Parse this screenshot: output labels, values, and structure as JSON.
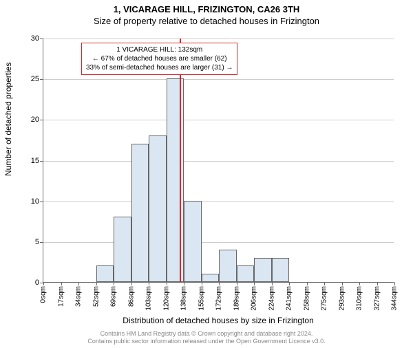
{
  "title_main": "1, VICARAGE HILL, FRIZINGTON, CA26 3TH",
  "title_sub": "Size of property relative to detached houses in Frizington",
  "chart": {
    "type": "histogram",
    "ylabel": "Number of detached properties",
    "xlabel": "Distribution of detached houses by size in Frizington",
    "ylim": [
      0,
      30
    ],
    "yticks": [
      0,
      5,
      10,
      15,
      20,
      25,
      30
    ],
    "xtick_labels": [
      "0sqm",
      "17sqm",
      "34sqm",
      "52sqm",
      "69sqm",
      "86sqm",
      "103sqm",
      "120sqm",
      "138sqm",
      "155sqm",
      "172sqm",
      "189sqm",
      "206sqm",
      "224sqm",
      "241sqm",
      "258sqm",
      "275sqm",
      "293sqm",
      "310sqm",
      "327sqm",
      "344sqm"
    ],
    "bin_count": 20,
    "bar_values": [
      0,
      0,
      0,
      2,
      8,
      17,
      18,
      25,
      10,
      1,
      4,
      2,
      3,
      3,
      0,
      0,
      0,
      0,
      0,
      0
    ],
    "bar_fill": "#dbe6f3",
    "bar_edge": "#666666",
    "grid_color": "#cccccc",
    "background": "#ffffff",
    "vline_position": 7.75,
    "vline_color": "#d62728",
    "callout": {
      "line1": "1 VICARAGE HILL: 132sqm",
      "line2": "← 67% of detached houses are smaller (62)",
      "line3": "33% of semi-detached houses are larger (31) →"
    }
  },
  "footer": {
    "line1": "Contains HM Land Registry data © Crown copyright and database right 2024.",
    "line2": "Contains public sector information released under the Open Government Licence v3.0."
  }
}
